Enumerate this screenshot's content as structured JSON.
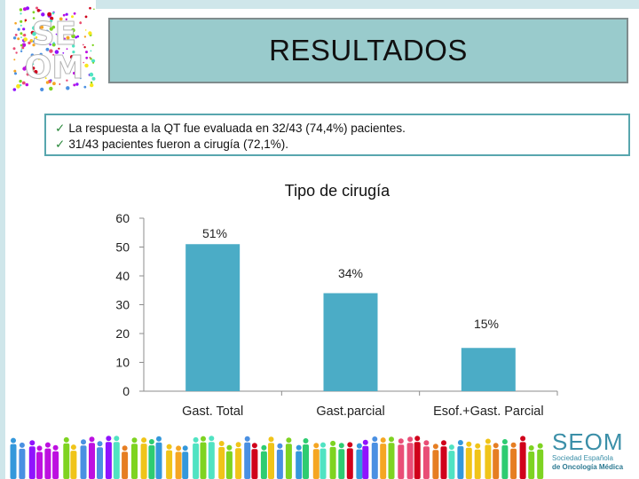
{
  "header": {
    "title": "RESULTADOS",
    "logo_text": "SEOM"
  },
  "info": {
    "line1": "La respuesta a la QT fue evaluada en 32/43 (74,4%) pacientes.",
    "line2": "31/43 pacientes fueron a cirugía (72,1%)."
  },
  "footer": {
    "brand": "SEOM",
    "sub1": "Sociedad Española",
    "sub2": "de Oncología Médica"
  },
  "chart_data": {
    "type": "bar",
    "title": "Tipo de cirugía",
    "categories": [
      "Gast. Total",
      "Gast.parcial",
      "Esof.+Gast. Parcial"
    ],
    "values": [
      51,
      34,
      15
    ],
    "data_labels": [
      "51%",
      "34%",
      "15%"
    ],
    "ylim": [
      0,
      60
    ],
    "yticks": [
      0,
      10,
      20,
      30,
      40,
      50,
      60
    ],
    "xlabel": "",
    "ylabel": "",
    "grid": false,
    "bar_color": "#4bacc6"
  }
}
